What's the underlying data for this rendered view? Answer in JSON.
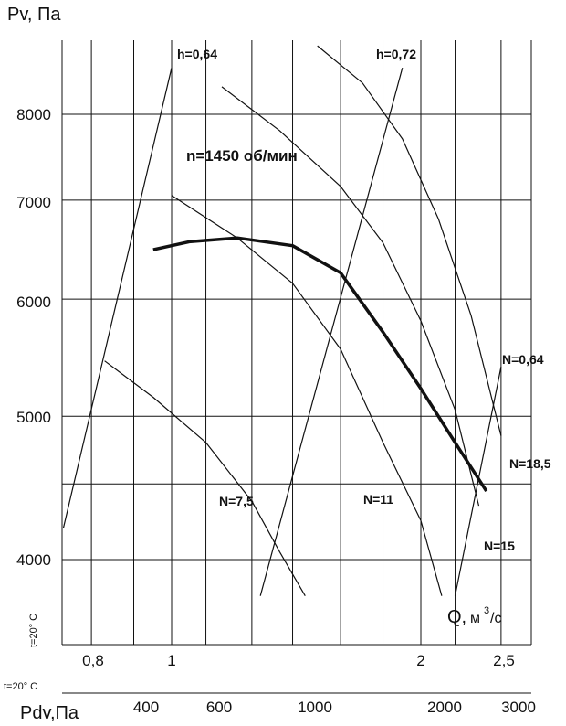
{
  "chart_data": {
    "type": "line",
    "y_axis": {
      "label": "Pv, Па",
      "ticks": [
        4000,
        5000,
        6000,
        7000,
        8000
      ],
      "scale": "log"
    },
    "x_axis_q": {
      "label": "Q,",
      "unit_m": "м",
      "unit_exp": "3",
      "unit_s": "/с",
      "ticks": [
        "0,8",
        "1",
        "2",
        "2,5"
      ],
      "tick_values": [
        0.8,
        1,
        2,
        2.5
      ],
      "scale": "log"
    },
    "x_axis_pdv": {
      "label": "Pdv,Па",
      "ticks": [
        "400",
        "600",
        "1000",
        "2000",
        "3000"
      ],
      "tick_values": [
        400,
        600,
        1000,
        2000,
        3000
      ]
    },
    "temp_label": "t=20° C",
    "speed_label": "n=1450 об/мин",
    "grid": true,
    "series": [
      {
        "name": "n=1450 об/мин",
        "points": [
          [
            0.95,
            6480
          ],
          [
            1.05,
            6560
          ],
          [
            1.2,
            6600
          ],
          [
            1.4,
            6520
          ],
          [
            1.6,
            6250
          ],
          [
            1.8,
            5700
          ],
          [
            2.0,
            5220
          ],
          [
            2.2,
            4800
          ],
          [
            2.4,
            4450
          ]
        ]
      }
    ],
    "power_curves": [
      {
        "label": "N=7,5",
        "points": [
          [
            0.83,
            5450
          ],
          [
            0.95,
            5150
          ],
          [
            1.1,
            4800
          ],
          [
            1.25,
            4380
          ],
          [
            1.35,
            4050
          ],
          [
            1.45,
            3780
          ]
        ]
      },
      {
        "label": "N=11",
        "points": [
          [
            1.0,
            7050
          ],
          [
            1.2,
            6600
          ],
          [
            1.4,
            6150
          ],
          [
            1.6,
            5550
          ],
          [
            1.8,
            4800
          ],
          [
            2.0,
            4250
          ],
          [
            2.12,
            3780
          ]
        ]
      },
      {
        "label": "N=15",
        "points": [
          [
            1.15,
            8350
          ],
          [
            1.35,
            7800
          ],
          [
            1.6,
            7150
          ],
          [
            1.8,
            6550
          ],
          [
            2.0,
            5800
          ],
          [
            2.2,
            5050
          ],
          [
            2.35,
            4350
          ]
        ]
      },
      {
        "label": "N=18,5",
        "points": [
          [
            1.5,
            8900
          ],
          [
            1.7,
            8400
          ],
          [
            1.9,
            7700
          ],
          [
            2.1,
            6800
          ],
          [
            2.3,
            5850
          ],
          [
            2.5,
            4850
          ]
        ]
      }
    ],
    "efficiency_lines": [
      {
        "label": "h=0,64",
        "points": [
          [
            0.74,
            4200
          ],
          [
            1.0,
            8600
          ]
        ]
      },
      {
        "label": "h=0,72",
        "points": [
          [
            1.28,
            3780
          ],
          [
            1.9,
            8600
          ]
        ]
      },
      {
        "label": "N=0,64",
        "points": [
          [
            2.2,
            3780
          ],
          [
            2.5,
            5400
          ]
        ]
      }
    ]
  }
}
